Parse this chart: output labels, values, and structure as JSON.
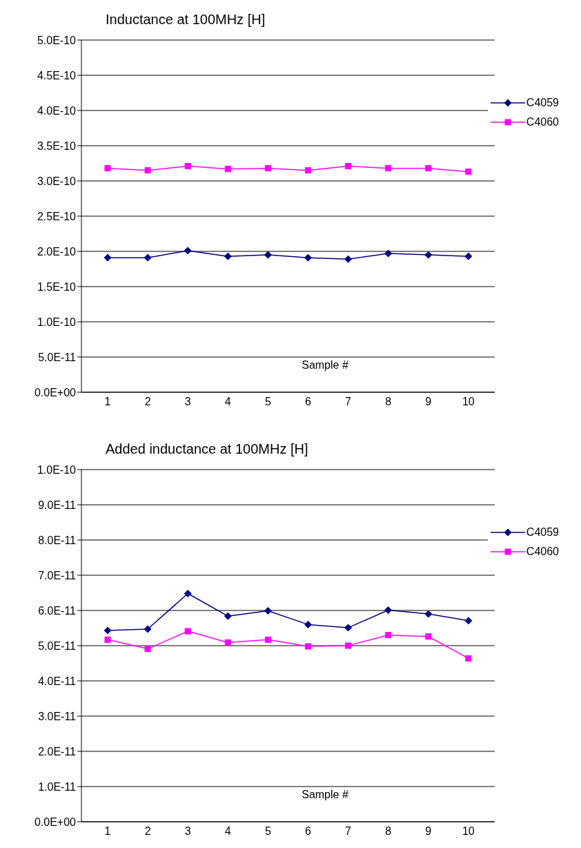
{
  "chart_data": [
    {
      "type": "line",
      "title": "Inductance at 100MHz [H]",
      "xlabel": "Sample #",
      "categories": [
        "1",
        "2",
        "3",
        "4",
        "5",
        "6",
        "7",
        "8",
        "9",
        "10"
      ],
      "series": [
        {
          "name": "C4059",
          "color": "#000080",
          "marker": "diamond",
          "values": [
            1.91e-10,
            1.91e-10,
            2.01e-10,
            1.93e-10,
            1.95e-10,
            1.91e-10,
            1.89e-10,
            1.97e-10,
            1.95e-10,
            1.93e-10
          ]
        },
        {
          "name": "C4060",
          "color": "#ff00ff",
          "marker": "square",
          "values": [
            3.18e-10,
            3.15e-10,
            3.21e-10,
            3.17e-10,
            3.18e-10,
            3.15e-10,
            3.21e-10,
            3.18e-10,
            3.18e-10,
            3.13e-10
          ]
        }
      ],
      "ylim": [
        0,
        5e-10
      ],
      "yticks": [
        {
          "value": 0,
          "label": "0.0E+00"
        },
        {
          "value": 5e-11,
          "label": "5.0E-11"
        },
        {
          "value": 1e-10,
          "label": "1.0E-10"
        },
        {
          "value": 1.5e-10,
          "label": "1.5E-10"
        },
        {
          "value": 2e-10,
          "label": "2.0E-10"
        },
        {
          "value": 2.5e-10,
          "label": "2.5E-10"
        },
        {
          "value": 3e-10,
          "label": "3.0E-10"
        },
        {
          "value": 3.5e-10,
          "label": "3.5E-10"
        },
        {
          "value": 4e-10,
          "label": "4.0E-10"
        },
        {
          "value": 4.5e-10,
          "label": "4.5E-10"
        },
        {
          "value": 5e-10,
          "label": "5.0E-10"
        }
      ],
      "grid": "y",
      "legend": "top right"
    },
    {
      "type": "line",
      "title": "Added inductance at 100MHz [H]",
      "xlabel": "Sample #",
      "categories": [
        "1",
        "2",
        "3",
        "4",
        "5",
        "6",
        "7",
        "8",
        "9",
        "10"
      ],
      "series": [
        {
          "name": "C4059",
          "color": "#000080",
          "marker": "diamond",
          "values": [
            5.43e-11,
            5.47e-11,
            6.48e-11,
            5.84e-11,
            5.99e-11,
            5.6e-11,
            5.51e-11,
            6.01e-11,
            5.9e-11,
            5.71e-11
          ]
        },
        {
          "name": "C4060",
          "color": "#ff00ff",
          "marker": "square",
          "values": [
            5.17e-11,
            4.91e-11,
            5.41e-11,
            5.09e-11,
            5.17e-11,
            4.98e-11,
            5e-11,
            5.3e-11,
            5.26e-11,
            4.64e-11
          ]
        }
      ],
      "ylim": [
        0,
        1e-10
      ],
      "yticks": [
        {
          "value": 0,
          "label": "0.0E+00"
        },
        {
          "value": 1e-11,
          "label": "1.0E-11"
        },
        {
          "value": 2e-11,
          "label": "2.0E-11"
        },
        {
          "value": 3e-11,
          "label": "3.0E-11"
        },
        {
          "value": 4e-11,
          "label": "4.0E-11"
        },
        {
          "value": 5e-11,
          "label": "5.0E-11"
        },
        {
          "value": 6e-11,
          "label": "6.0E-11"
        },
        {
          "value": 7e-11,
          "label": "7.0E-11"
        },
        {
          "value": 8e-11,
          "label": "8.0E-11"
        },
        {
          "value": 9e-11,
          "label": "9.0E-11"
        },
        {
          "value": 1e-10,
          "label": "1.0E-10"
        }
      ],
      "grid": "y",
      "legend": "top right"
    }
  ]
}
